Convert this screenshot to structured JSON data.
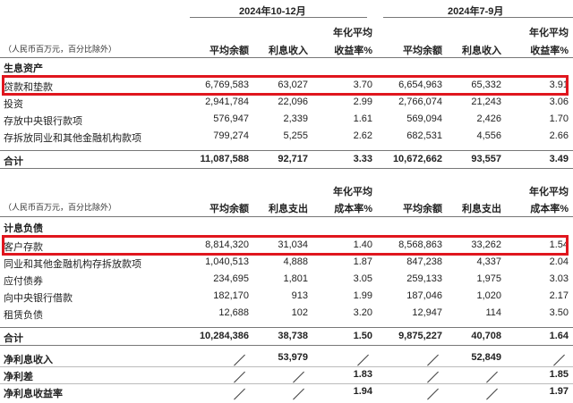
{
  "periods": [
    "2024年10-12月",
    "2024年7-9月"
  ],
  "assets": {
    "unit": "（人民币百万元，百分比除外）",
    "headers": [
      "平均余额",
      "利息收入",
      "年化平均",
      "收益率%",
      "平均余额",
      "利息收入",
      "年化平均",
      "收益率%"
    ],
    "section": "生息资产",
    "rows": [
      [
        "贷款和垫款",
        "6,769,583",
        "63,027",
        "3.70",
        "6,654,963",
        "65,332",
        "3.91"
      ],
      [
        "投资",
        "2,941,784",
        "22,096",
        "2.99",
        "2,766,074",
        "21,243",
        "3.06"
      ],
      [
        "存放中央银行款项",
        "576,947",
        "2,339",
        "1.61",
        "569,094",
        "2,426",
        "1.70"
      ],
      [
        "存拆放同业和其他金融机构款项",
        "799,274",
        "5,255",
        "2.62",
        "682,531",
        "4,556",
        "2.66"
      ]
    ],
    "total": [
      "合计",
      "11,087,588",
      "92,717",
      "3.33",
      "10,672,662",
      "93,557",
      "3.49"
    ]
  },
  "liabilities": {
    "unit": "（人民币百万元，百分比除外）",
    "headers": [
      "平均余额",
      "利息支出",
      "年化平均",
      "成本率%",
      "平均余额",
      "利息支出",
      "年化平均",
      "成本率%"
    ],
    "section": "计息负债",
    "rows": [
      [
        "客户存款",
        "8,814,320",
        "31,034",
        "1.40",
        "8,568,863",
        "33,262",
        "1.54"
      ],
      [
        "同业和其他金融机构存拆放款项",
        "1,040,513",
        "4,888",
        "1.87",
        "847,238",
        "4,337",
        "2.04"
      ],
      [
        "应付债券",
        "234,695",
        "1,801",
        "3.05",
        "259,133",
        "1,975",
        "3.03"
      ],
      [
        "向中央银行借款",
        "182,170",
        "913",
        "1.99",
        "187,046",
        "1,020",
        "2.17"
      ],
      [
        "租赁负债",
        "12,688",
        "102",
        "3.20",
        "12,947",
        "114",
        "3.50"
      ]
    ],
    "total": [
      "合计",
      "10,284,386",
      "38,738",
      "1.50",
      "9,875,227",
      "40,708",
      "1.64"
    ]
  },
  "summary": [
    [
      "净利息收入",
      "／",
      "53,979",
      "／",
      "／",
      "52,849",
      "／"
    ],
    [
      "净利差",
      "／",
      "／",
      "1.83",
      "／",
      "／",
      "1.85"
    ],
    [
      "净利息收益率",
      "／",
      "／",
      "1.94",
      "／",
      "／",
      "1.97"
    ]
  ],
  "colors": {
    "highlight": "#e0161e"
  }
}
